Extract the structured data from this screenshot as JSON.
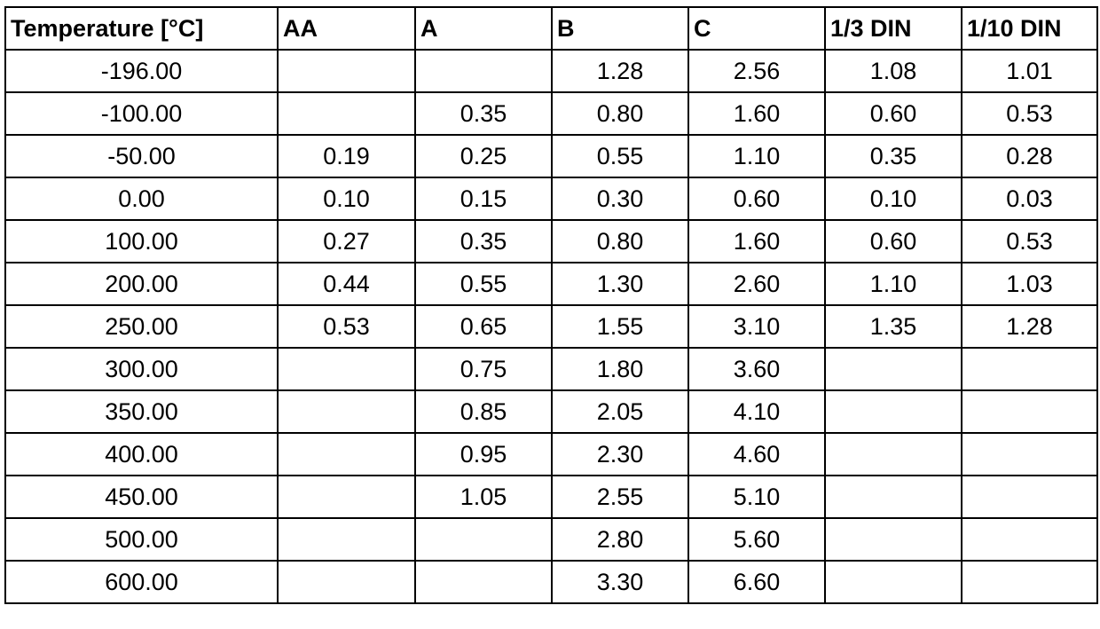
{
  "table": {
    "header": [
      "Temperature [°C]",
      "AA",
      "A",
      "B",
      "C",
      "1/3 DIN",
      "1/10 DIN"
    ],
    "rows": [
      [
        "-196.00",
        null,
        null,
        "1.28",
        "2.56",
        "1.08",
        "1.01"
      ],
      [
        "-100.00",
        null,
        "0.35",
        "0.80",
        "1.60",
        "0.60",
        "0.53"
      ],
      [
        "-50.00",
        "0.19",
        "0.25",
        "0.55",
        "1.10",
        "0.35",
        "0.28"
      ],
      [
        "0.00",
        "0.10",
        "0.15",
        "0.30",
        "0.60",
        "0.10",
        "0.03"
      ],
      [
        "100.00",
        "0.27",
        "0.35",
        "0.80",
        "1.60",
        "0.60",
        "0.53"
      ],
      [
        "200.00",
        "0.44",
        "0.55",
        "1.30",
        "2.60",
        "1.10",
        "1.03"
      ],
      [
        "250.00",
        "0.53",
        "0.65",
        "1.55",
        "3.10",
        "1.35",
        "1.28"
      ],
      [
        "300.00",
        null,
        "0.75",
        "1.80",
        "3.60",
        null,
        null
      ],
      [
        "350.00",
        null,
        "0.85",
        "2.05",
        "4.10",
        null,
        null
      ],
      [
        "400.00",
        null,
        "0.95",
        "2.30",
        "4.60",
        null,
        null
      ],
      [
        "450.00",
        null,
        "1.05",
        "2.55",
        "5.10",
        null,
        null
      ],
      [
        "500.00",
        null,
        null,
        "2.80",
        "5.60",
        null,
        null
      ],
      [
        "600.00",
        null,
        null,
        "3.30",
        "6.60",
        null,
        null
      ]
    ]
  }
}
